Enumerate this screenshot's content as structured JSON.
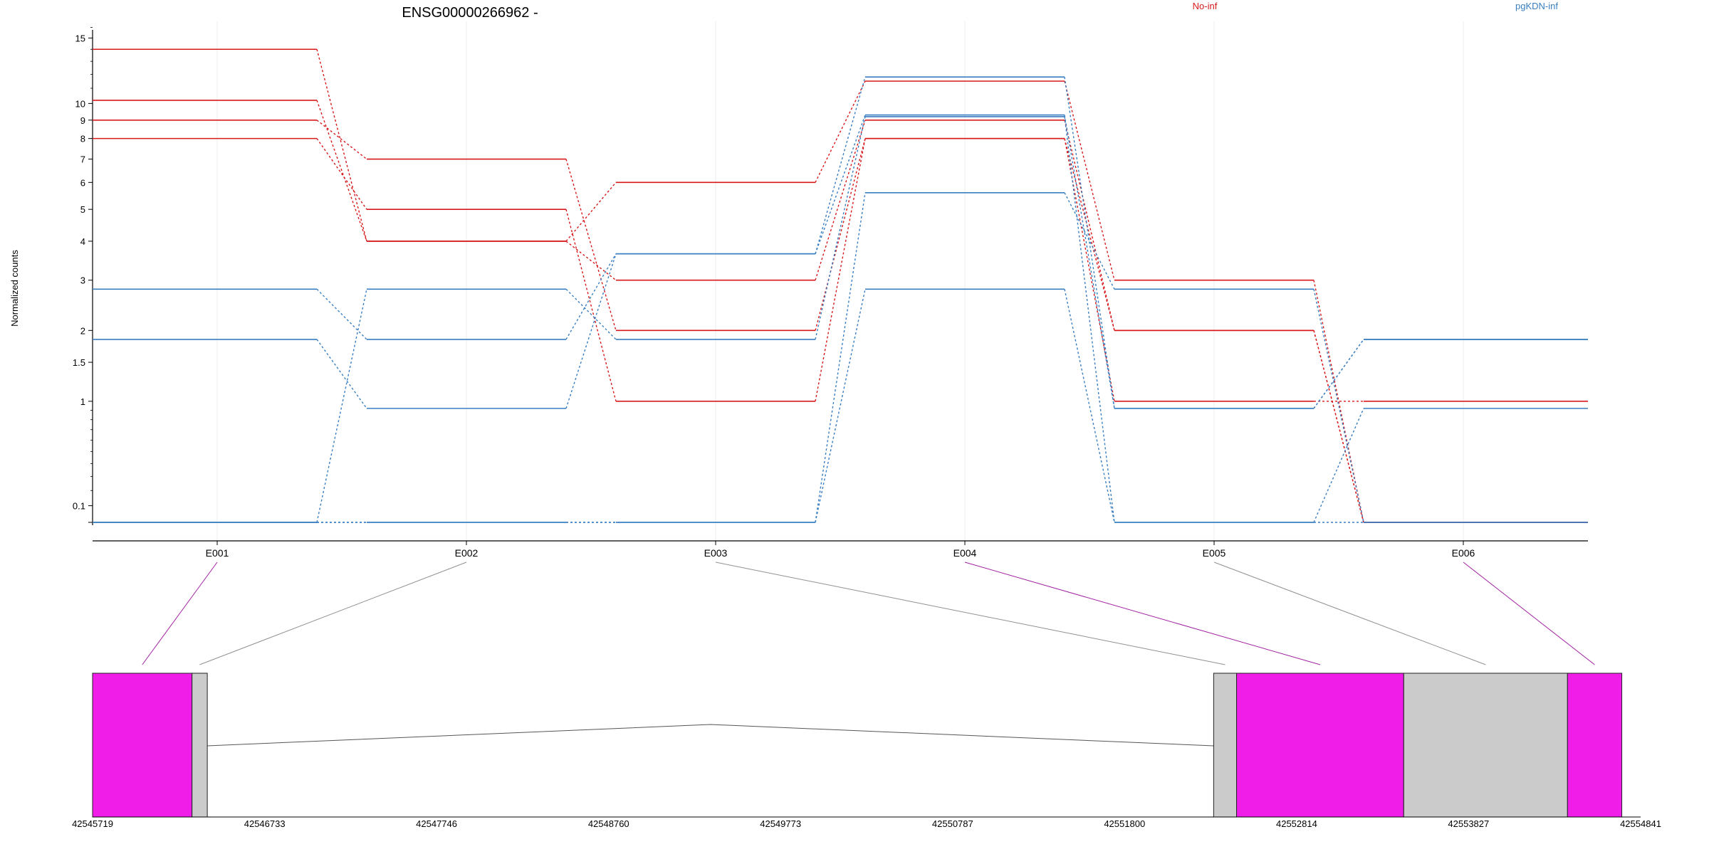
{
  "chart_data": {
    "type": "line",
    "title": "ENSG00000266962 -",
    "xlabel": "",
    "ylabel": "Normalized counts",
    "y_scale": "log1p",
    "y_ticks": [
      0.1,
      1,
      1.5,
      2,
      3,
      4,
      5,
      6,
      7,
      8,
      9,
      10,
      15
    ],
    "y_tick_labels": [
      "0.1",
      "1",
      "1.5",
      "2",
      "3",
      "4",
      "5",
      "6",
      "7",
      "8",
      "9",
      "10",
      "15"
    ],
    "categories": [
      "E001",
      "E002",
      "E003",
      "E004",
      "E005",
      "E006"
    ],
    "legend": [
      {
        "label": "No-inf",
        "color": "#d7191c"
      },
      {
        "label": "pgKDN-inf",
        "color": "#3a7fc1"
      }
    ],
    "legend_placement": "top",
    "grid": true,
    "series": [
      {
        "group": "No-inf",
        "values": [
          14,
          4,
          6,
          11.5,
          3,
          0
        ]
      },
      {
        "group": "No-inf",
        "values": [
          10.2,
          4,
          3,
          9,
          2,
          0
        ]
      },
      {
        "group": "No-inf",
        "values": [
          9,
          7,
          2,
          8,
          2,
          0
        ]
      },
      {
        "group": "No-inf",
        "values": [
          8,
          5,
          1,
          8,
          1,
          1
        ]
      },
      {
        "group": "pgKDN-inf",
        "values": [
          2.8,
          1.85,
          3.65,
          11.8,
          0.92,
          1.85
        ]
      },
      {
        "group": "pgKDN-inf",
        "values": [
          1.85,
          0.92,
          3.65,
          9.3,
          0.92,
          1.85
        ]
      },
      {
        "group": "pgKDN-inf",
        "values": [
          0,
          2.8,
          1.85,
          9.2,
          0,
          0.92
        ]
      },
      {
        "group": "pgKDN-inf",
        "values": [
          0,
          0,
          0,
          5.6,
          2.8,
          0
        ]
      },
      {
        "group": "pgKDN-inf",
        "values": [
          0,
          0,
          0,
          2.8,
          0,
          0
        ]
      }
    ],
    "gene_model": {
      "coordinate_labels": [
        "42545719",
        "42546733",
        "42547746",
        "42548760",
        "42549773",
        "42550787",
        "42551800",
        "42552814",
        "42553827",
        "42554841"
      ],
      "features": [
        {
          "type": "exon",
          "name": "E001",
          "start": 42545719,
          "end": 42546305,
          "highlighted": true
        },
        {
          "type": "exon",
          "name": "E002",
          "start": 42546305,
          "end": 42546395,
          "highlighted": false
        },
        {
          "type": "exon",
          "name": "E003",
          "start": 42552325,
          "end": 42552460,
          "highlighted": false
        },
        {
          "type": "exon",
          "name": "E004",
          "start": 42552460,
          "end": 42553445,
          "highlighted": true
        },
        {
          "type": "exon",
          "name": "E005",
          "start": 42553445,
          "end": 42554410,
          "highlighted": false
        },
        {
          "type": "exon",
          "name": "E006",
          "start": 42554410,
          "end": 42554730,
          "highlighted": true
        }
      ],
      "highlight_color": "#f01de8",
      "exon_color": "#cbcbcb",
      "link_highlight_color": "#a020a0",
      "link_color": "#909090"
    }
  }
}
